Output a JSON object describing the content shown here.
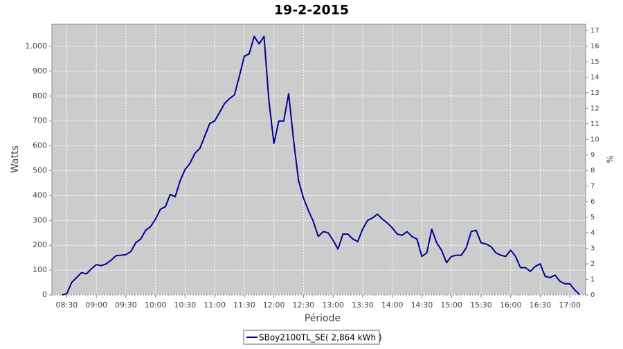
{
  "chart_data": {
    "type": "line",
    "title": "19-2-2015",
    "xlabel": "Période",
    "ylabel": "Watts",
    "y2label": "%",
    "x": [
      "08:25",
      "08:30",
      "08:35",
      "08:40",
      "08:45",
      "08:50",
      "08:55",
      "09:00",
      "09:05",
      "09:10",
      "09:15",
      "09:20",
      "09:25",
      "09:30",
      "09:35",
      "09:40",
      "09:45",
      "09:50",
      "09:55",
      "10:00",
      "10:05",
      "10:10",
      "10:15",
      "10:20",
      "10:25",
      "10:30",
      "10:35",
      "10:40",
      "10:45",
      "10:50",
      "10:55",
      "11:00",
      "11:05",
      "11:10",
      "11:15",
      "11:20",
      "11:25",
      "11:30",
      "11:35",
      "11:40",
      "11:45",
      "11:50",
      "11:55",
      "12:00",
      "12:05",
      "12:10",
      "12:15",
      "12:20",
      "12:25",
      "12:30",
      "12:35",
      "12:40",
      "12:45",
      "12:50",
      "12:55",
      "13:00",
      "13:05",
      "13:10",
      "13:15",
      "13:20",
      "13:25",
      "13:30",
      "13:35",
      "13:40",
      "13:45",
      "13:50",
      "13:55",
      "14:00",
      "14:05",
      "14:10",
      "14:15",
      "14:20",
      "14:25",
      "14:30",
      "14:35",
      "14:40",
      "14:45",
      "14:50",
      "14:55",
      "15:00",
      "15:05",
      "15:10",
      "15:15",
      "15:20",
      "15:25",
      "15:30",
      "15:35",
      "15:40",
      "15:45",
      "15:50",
      "15:55",
      "16:00",
      "16:05",
      "16:10",
      "16:15",
      "16:20",
      "16:25",
      "16:30",
      "16:35",
      "16:40",
      "16:45",
      "16:50",
      "16:55",
      "17:00",
      "17:05",
      "17:10"
    ],
    "series": [
      {
        "name": "SBoy2100TL_SE( 2,864 kWh )",
        "color": "#000099",
        "values": [
          0,
          5,
          50,
          70,
          90,
          85,
          105,
          122,
          118,
          125,
          140,
          158,
          160,
          162,
          175,
          210,
          225,
          260,
          275,
          305,
          345,
          355,
          405,
          395,
          460,
          505,
          530,
          570,
          590,
          640,
          690,
          700,
          735,
          770,
          790,
          805,
          880,
          960,
          970,
          1040,
          1010,
          1040,
          780,
          610,
          700,
          700,
          810,
          620,
          460,
          390,
          340,
          295,
          235,
          255,
          250,
          220,
          185,
          245,
          245,
          225,
          215,
          265,
          300,
          310,
          325,
          305,
          290,
          270,
          245,
          240,
          255,
          235,
          225,
          155,
          170,
          265,
          210,
          180,
          130,
          155,
          160,
          160,
          190,
          255,
          260,
          210,
          205,
          195,
          170,
          160,
          155,
          180,
          155,
          110,
          110,
          95,
          115,
          125,
          75,
          70,
          80,
          55,
          45,
          45,
          20,
          2
        ]
      }
    ],
    "xlim": [
      "08:15",
      "17:16"
    ],
    "xticks": [
      "08:30",
      "09:00",
      "09:30",
      "10:00",
      "10:30",
      "11:00",
      "11:30",
      "12:00",
      "12:30",
      "13:00",
      "13:30",
      "14:00",
      "14:30",
      "15:00",
      "15:30",
      "16:00",
      "16:30",
      "17:00"
    ],
    "ylim": [
      0,
      1089
    ],
    "yticks": [
      0,
      100,
      200,
      300,
      400,
      500,
      600,
      700,
      800,
      900,
      {
        "value": 1000,
        "label": "1.000"
      }
    ],
    "y2lim": [
      0,
      17.4
    ],
    "y2ticks": [
      0,
      1,
      2,
      3,
      4,
      5,
      6,
      7,
      8,
      9,
      10,
      11,
      12,
      13,
      14,
      15,
      16,
      17
    ],
    "grid": true
  }
}
